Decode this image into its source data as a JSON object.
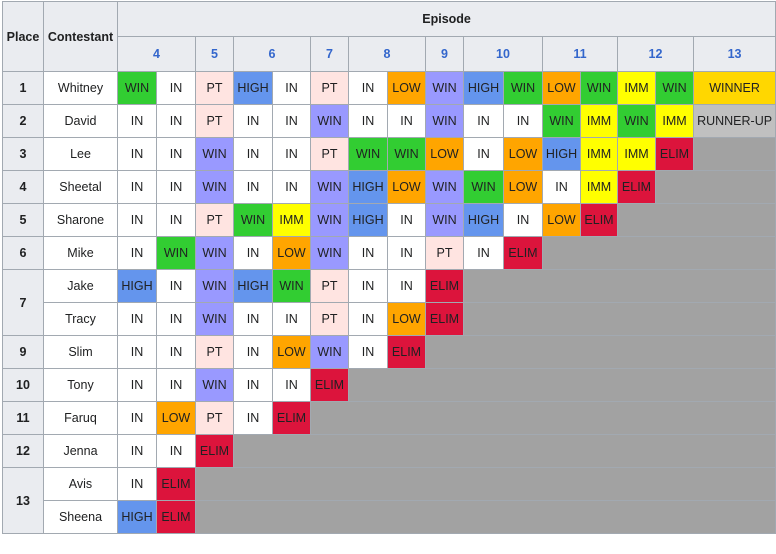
{
  "headers": {
    "place": "Place",
    "contestant": "Contestant",
    "episode": "Episode"
  },
  "episodes": [
    {
      "label": "4",
      "span": 2
    },
    {
      "label": "5",
      "span": 1
    },
    {
      "label": "6",
      "span": 2
    },
    {
      "label": "7",
      "span": 1
    },
    {
      "label": "8",
      "span": 2
    },
    {
      "label": "9",
      "span": 1
    },
    {
      "label": "10",
      "span": 2
    },
    {
      "label": "11",
      "span": 2
    },
    {
      "label": "12",
      "span": 2
    },
    {
      "label": "13",
      "span": 1
    }
  ],
  "status_colors": {
    "WIN": "#32cd32",
    "IN": "#ffffff",
    "PT": "#ffe4e1",
    "HIGH": "#6495ed",
    "LOW": "#ffa500",
    "IMM": "#ffff00",
    "ELIM": "#dc143c",
    "WINNER": "#ffd700",
    "RUNNER-UP": "#c0c0c0",
    "PURPLE": "#9999ff"
  },
  "rows": [
    {
      "place": "1",
      "place_span": 1,
      "name": "Whitney",
      "results": [
        "WIN",
        "IN",
        "PT",
        "HIGH",
        "IN",
        "PT",
        "IN",
        "LOW",
        "WIN",
        "HIGH",
        "WIN",
        "LOW",
        "WIN",
        "IMM",
        "WIN",
        "WINNER"
      ]
    },
    {
      "place": "2",
      "place_span": 1,
      "name": "David",
      "results": [
        "IN",
        "IN",
        "PT",
        "IN",
        "IN",
        "WIN",
        "IN",
        "IN",
        "WIN",
        "IN",
        "IN",
        "WIN",
        "IMM",
        "WIN",
        "IMM",
        "RUNNER-UP"
      ]
    },
    {
      "place": "3",
      "place_span": 1,
      "name": "Lee",
      "results": [
        "IN",
        "IN",
        "WIN",
        "IN",
        "IN",
        "PT",
        "WIN",
        "WIN",
        "LOW",
        "IN",
        "LOW",
        "HIGH",
        "IMM",
        "IMM",
        "ELIM"
      ]
    },
    {
      "place": "4",
      "place_span": 1,
      "name": "Sheetal",
      "results": [
        "IN",
        "IN",
        "WIN",
        "IN",
        "IN",
        "WIN",
        "HIGH",
        "LOW",
        "WIN",
        "WIN",
        "LOW",
        "IN",
        "IMM",
        "ELIM"
      ]
    },
    {
      "place": "5",
      "place_span": 1,
      "name": "Sharone",
      "results": [
        "IN",
        "IN",
        "PT",
        "WIN",
        "IMM",
        "WIN",
        "HIGH",
        "IN",
        "WIN",
        "HIGH",
        "IN",
        "LOW",
        "ELIM"
      ]
    },
    {
      "place": "6",
      "place_span": 1,
      "name": "Mike",
      "results": [
        "IN",
        "WIN",
        "WIN",
        "IN",
        "LOW",
        "WIN",
        "IN",
        "IN",
        "PT",
        "IN",
        "ELIM"
      ]
    },
    {
      "place": "7",
      "place_span": 2,
      "name": "Jake",
      "results": [
        "HIGH",
        "IN",
        "WIN",
        "HIGH",
        "WIN",
        "PT",
        "IN",
        "IN",
        "ELIM"
      ]
    },
    {
      "place": "",
      "place_span": 0,
      "name": "Tracy",
      "results": [
        "IN",
        "IN",
        "WIN",
        "IN",
        "IN",
        "PT",
        "IN",
        "LOW",
        "ELIM"
      ]
    },
    {
      "place": "9",
      "place_span": 1,
      "name": "Slim",
      "results": [
        "IN",
        "IN",
        "PT",
        "IN",
        "LOW",
        "WIN",
        "IN",
        "ELIM"
      ]
    },
    {
      "place": "10",
      "place_span": 1,
      "name": "Tony",
      "results": [
        "IN",
        "IN",
        "WIN",
        "IN",
        "IN",
        "ELIM"
      ]
    },
    {
      "place": "11",
      "place_span": 1,
      "name": "Faruq",
      "results": [
        "IN",
        "LOW",
        "PT",
        "IN",
        "ELIM"
      ]
    },
    {
      "place": "12",
      "place_span": 1,
      "name": "Jenna",
      "results": [
        "IN",
        "IN",
        "ELIM"
      ]
    },
    {
      "place": "13",
      "place_span": 2,
      "name": "Avis",
      "results": [
        "IN",
        "ELIM"
      ]
    },
    {
      "place": "",
      "place_span": 0,
      "name": "Sheena",
      "results": [
        "HIGH",
        "ELIM"
      ]
    }
  ]
}
